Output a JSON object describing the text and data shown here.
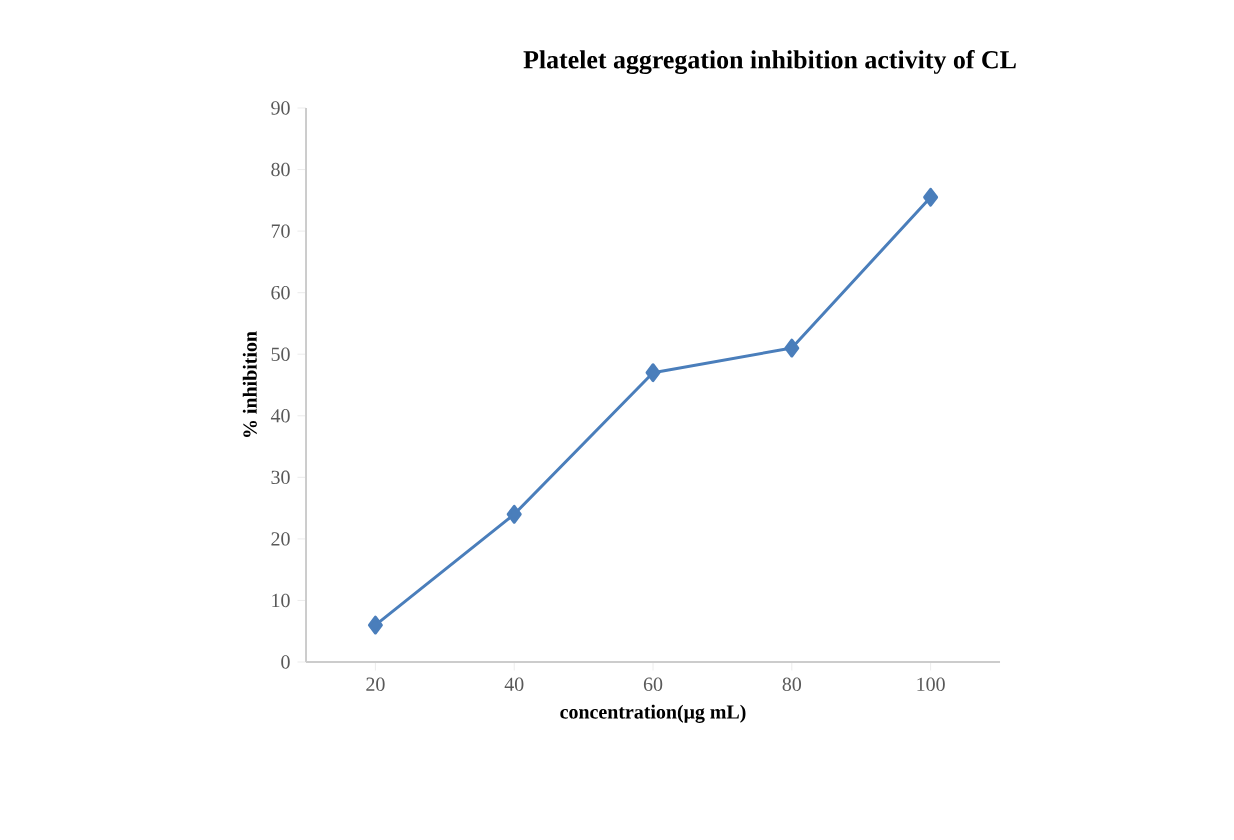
{
  "chart_data": {
    "type": "line",
    "title": "Platelet aggregation inhibition activity of  CL",
    "xlabel": "concentration(μg mL)",
    "ylabel": "% inhibition",
    "categories": [
      "20",
      "40",
      "60",
      "80",
      "100"
    ],
    "series": [
      {
        "color": "#4a7ebb",
        "values": [
          6,
          24,
          47,
          51,
          75.5
        ]
      }
    ],
    "ylim": [
      0,
      90
    ],
    "yticks": [
      0,
      10,
      20,
      30,
      40,
      50,
      60,
      70,
      80,
      90
    ],
    "grid": false,
    "marker": "diamond",
    "line_style": "solid"
  }
}
